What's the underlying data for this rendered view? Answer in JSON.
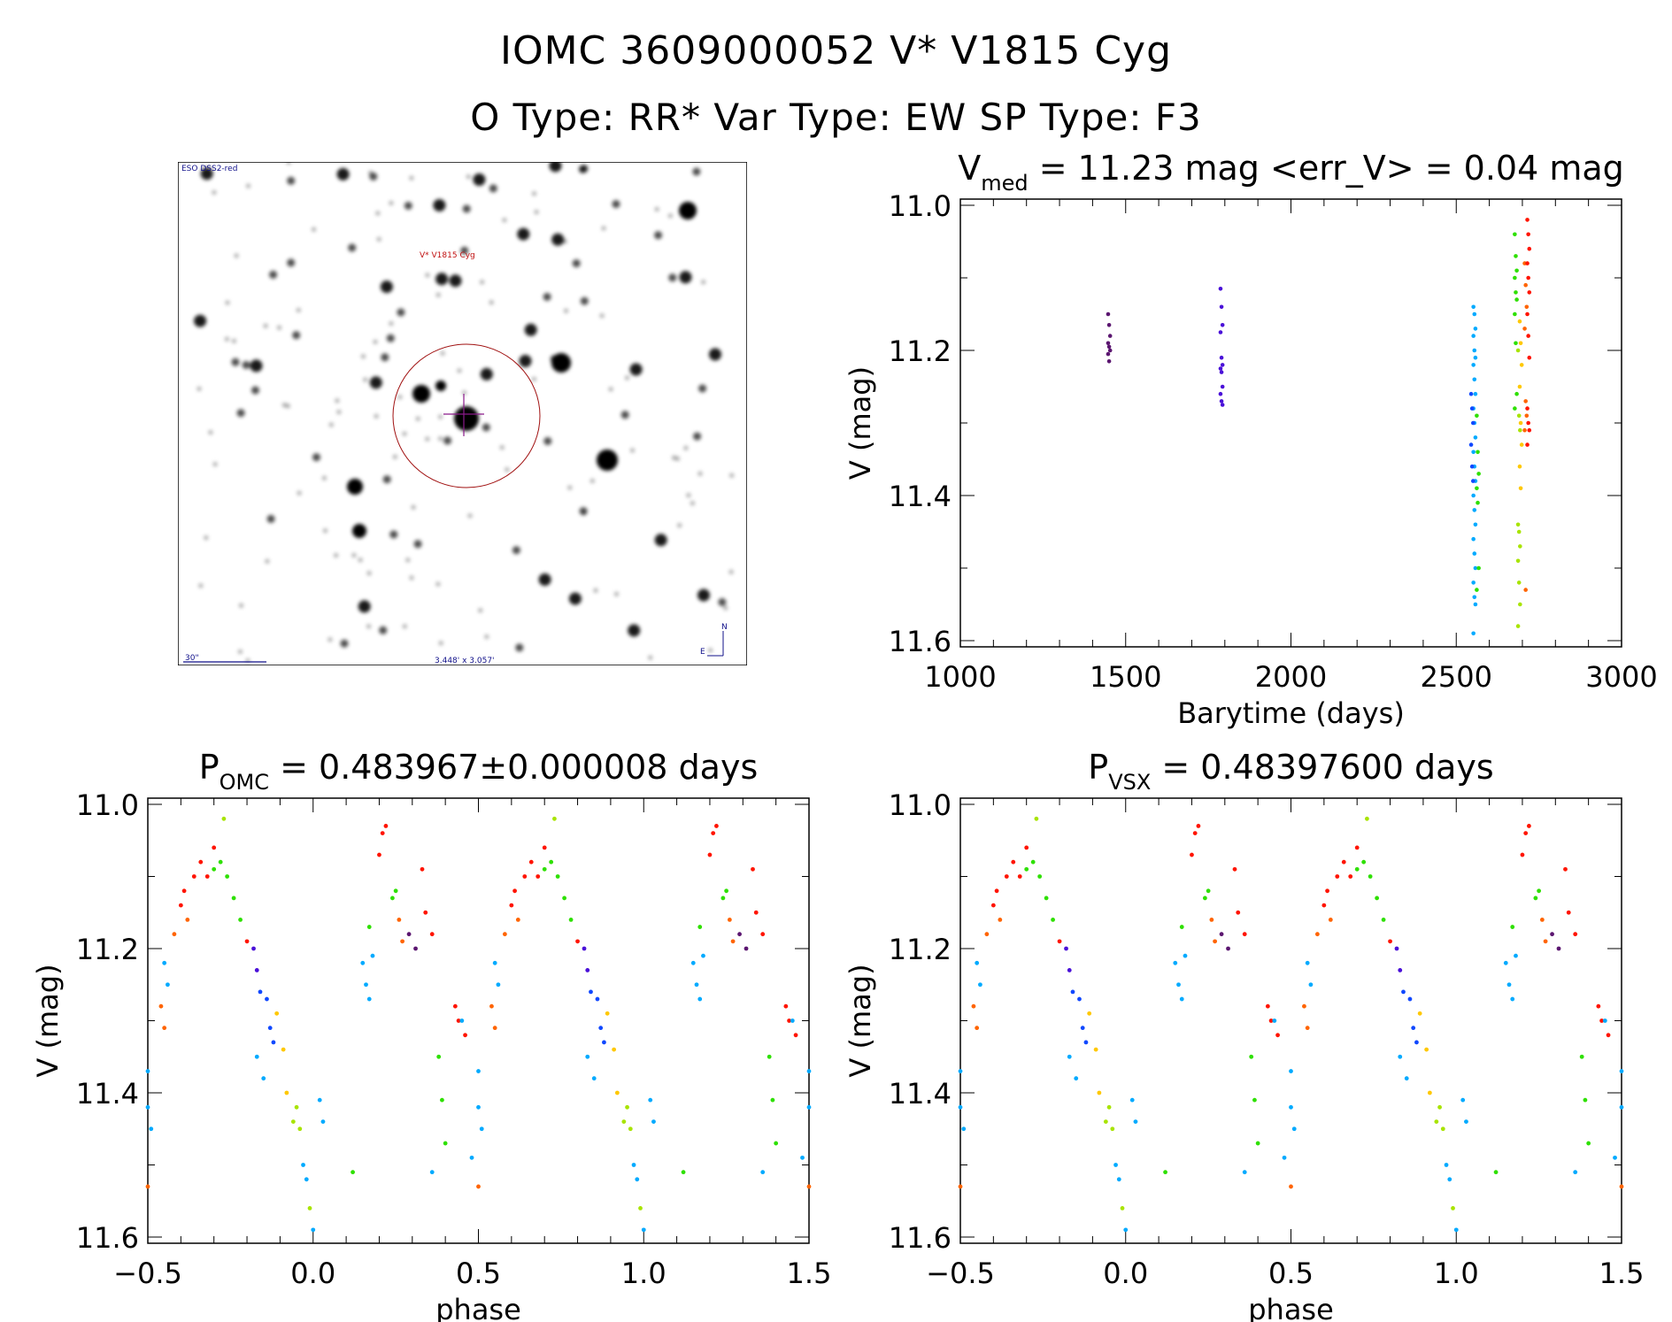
{
  "header": {
    "line1": "IOMC 3609000052    V* V1815 Cyg",
    "line2": "O Type: RR*   Var Type: EW   SP Type: F3"
  },
  "finder": {
    "survey": "ESO DSS2-red",
    "target_label": "V* V1815 Cyg",
    "scale_label": "30\"",
    "field_size": "3.448' x 3.057'",
    "north": "N",
    "east": "E"
  },
  "colors": [
    "#5b1670",
    "#4a10d8",
    "#1048ff",
    "#00aaff",
    "#2ee000",
    "#a8e400",
    "#ffc800",
    "#ff6400",
    "#ff1400"
  ],
  "chart_data": [
    {
      "type": "scatter",
      "title_main": "V",
      "title_sub": "med",
      "title_rest": " = 11.23 mag <err_V> = 0.04 mag",
      "xlabel": "Barytime (days)",
      "ylabel": "V (mag)",
      "xlim": [
        1000,
        3000
      ],
      "ylim": [
        11.6,
        11.0
      ],
      "xticks": [
        "1000",
        "1500",
        "2000",
        "2500",
        "3000"
      ],
      "yticks": [
        "11.0",
        "11.2",
        "11.4",
        "11.6"
      ],
      "groups": [
        {
          "t": 1450,
          "color": 0,
          "mags": [
            11.15,
            11.165,
            11.18,
            11.19,
            11.195,
            11.2,
            11.205,
            11.215
          ]
        },
        {
          "t": 1790,
          "color": 1,
          "mags": [
            11.115,
            11.14,
            11.165,
            11.175,
            11.21,
            11.22,
            11.225,
            11.23,
            11.25,
            11.26,
            11.27,
            11.275
          ]
        },
        {
          "t": 2555,
          "color": 3,
          "mags": [
            11.14,
            11.15,
            11.17,
            11.18,
            11.2,
            11.21,
            11.22,
            11.24,
            11.26,
            11.28,
            11.3,
            11.32,
            11.34,
            11.36,
            11.38,
            11.4,
            11.42,
            11.44,
            11.46,
            11.48,
            11.5,
            11.52,
            11.54,
            11.55,
            11.59
          ]
        },
        {
          "t": 2548,
          "color": 2,
          "mags": [
            11.26,
            11.28,
            11.3,
            11.33,
            11.36,
            11.38
          ]
        },
        {
          "t": 2565,
          "color": 4,
          "mags": [
            11.29,
            11.34,
            11.37,
            11.39,
            11.41,
            11.5,
            11.53
          ]
        },
        {
          "t": 2680,
          "color": 4,
          "mags": [
            11.04,
            11.07,
            11.09,
            11.1,
            11.12,
            11.13,
            11.15,
            11.19,
            11.26,
            11.28
          ]
        },
        {
          "t": 2690,
          "color": 5,
          "mags": [
            11.2,
            11.29,
            11.31,
            11.44,
            11.45,
            11.47,
            11.49,
            11.52,
            11.55,
            11.58
          ]
        },
        {
          "t": 2695,
          "color": 6,
          "mags": [
            11.16,
            11.19,
            11.22,
            11.25,
            11.3,
            11.33,
            11.36,
            11.39
          ]
        },
        {
          "t": 2710,
          "color": 7,
          "mags": [
            11.08,
            11.11,
            11.14,
            11.17,
            11.27,
            11.29,
            11.31,
            11.53
          ]
        },
        {
          "t": 2718,
          "color": 8,
          "mags": [
            11.02,
            11.04,
            11.06,
            11.08,
            11.1,
            11.12,
            11.15,
            11.18,
            11.21,
            11.28,
            11.3,
            11.31,
            11.33
          ]
        }
      ]
    },
    {
      "type": "scatter",
      "title_main": "P",
      "title_sub": "OMC",
      "title_rest": " = 0.483967±0.000008 days",
      "xlabel": "phase",
      "ylabel": "V (mag)",
      "xlim": [
        -0.5,
        1.5
      ],
      "ylim": [
        11.6,
        11.0
      ],
      "xticks": [
        "−0.5",
        "0.0",
        "0.5",
        "1.0",
        "1.5"
      ],
      "yticks": [
        "11.0",
        "11.2",
        "11.4",
        "11.6"
      ],
      "points": [
        [
          0.5,
          11.37,
          3
        ],
        [
          0.5,
          11.42,
          3
        ],
        [
          0.51,
          11.45,
          3
        ],
        [
          0.5,
          11.53,
          7
        ],
        [
          0.54,
          11.28,
          7
        ],
        [
          0.55,
          11.31,
          7
        ],
        [
          0.55,
          11.22,
          3
        ],
        [
          0.56,
          11.25,
          3
        ],
        [
          0.58,
          11.18,
          7
        ],
        [
          0.6,
          11.14,
          8
        ],
        [
          0.61,
          11.12,
          8
        ],
        [
          0.62,
          11.16,
          7
        ],
        [
          0.64,
          11.1,
          8
        ],
        [
          0.66,
          11.08,
          8
        ],
        [
          0.68,
          11.1,
          8
        ],
        [
          0.7,
          11.06,
          8
        ],
        [
          0.7,
          11.09,
          4
        ],
        [
          0.72,
          11.08,
          4
        ],
        [
          0.73,
          11.02,
          5
        ],
        [
          0.74,
          11.1,
          4
        ],
        [
          0.76,
          11.13,
          4
        ],
        [
          0.78,
          11.16,
          4
        ],
        [
          0.8,
          11.19,
          8
        ],
        [
          0.82,
          11.2,
          1
        ],
        [
          0.83,
          11.23,
          1
        ],
        [
          0.84,
          11.26,
          2
        ],
        [
          0.83,
          11.35,
          3
        ],
        [
          0.85,
          11.38,
          3
        ],
        [
          0.86,
          11.27,
          2
        ],
        [
          0.87,
          11.31,
          2
        ],
        [
          0.88,
          11.33,
          2
        ],
        [
          0.89,
          11.29,
          6
        ],
        [
          0.91,
          11.34,
          6
        ],
        [
          0.92,
          11.4,
          6
        ],
        [
          0.94,
          11.44,
          5
        ],
        [
          0.95,
          11.42,
          5
        ],
        [
          0.96,
          11.45,
          5
        ],
        [
          0.97,
          11.5,
          3
        ],
        [
          0.98,
          11.52,
          3
        ],
        [
          0.99,
          11.56,
          5
        ],
        [
          1.0,
          11.59,
          3
        ],
        [
          0.02,
          11.41,
          3
        ],
        [
          0.03,
          11.44,
          3
        ],
        [
          0.15,
          11.22,
          3
        ],
        [
          0.16,
          11.25,
          3
        ],
        [
          0.17,
          11.27,
          3
        ],
        [
          0.17,
          11.17,
          4
        ],
        [
          0.18,
          11.21,
          3
        ],
        [
          0.2,
          11.07,
          8
        ],
        [
          0.21,
          11.04,
          8
        ],
        [
          0.22,
          11.03,
          8
        ],
        [
          0.24,
          11.13,
          4
        ],
        [
          0.25,
          11.12,
          4
        ],
        [
          0.26,
          11.16,
          7
        ],
        [
          0.27,
          11.19,
          7
        ],
        [
          0.29,
          11.18,
          0
        ],
        [
          0.31,
          11.2,
          0
        ],
        [
          0.33,
          11.09,
          8
        ],
        [
          0.34,
          11.15,
          8
        ],
        [
          0.36,
          11.18,
          8
        ],
        [
          0.38,
          11.35,
          4
        ],
        [
          0.39,
          11.41,
          4
        ],
        [
          0.4,
          11.47,
          4
        ],
        [
          0.43,
          11.28,
          8
        ],
        [
          0.44,
          11.3,
          8
        ],
        [
          0.45,
          11.3,
          3
        ],
        [
          0.46,
          11.32,
          8
        ],
        [
          0.48,
          11.49,
          3
        ],
        [
          0.36,
          11.51,
          3
        ],
        [
          0.12,
          11.51,
          4
        ]
      ]
    },
    {
      "type": "scatter",
      "title_main": "P",
      "title_sub": "VSX",
      "title_rest": " = 0.48397600 days",
      "xlabel": "phase",
      "ylabel": "V (mag)",
      "xlim": [
        -0.5,
        1.5
      ],
      "ylim": [
        11.6,
        11.0
      ],
      "xticks": [
        "−0.5",
        "0.0",
        "0.5",
        "1.0",
        "1.5"
      ],
      "yticks": [
        "11.0",
        "11.2",
        "11.4",
        "11.6"
      ],
      "same_points_as": "P_OMC"
    }
  ]
}
